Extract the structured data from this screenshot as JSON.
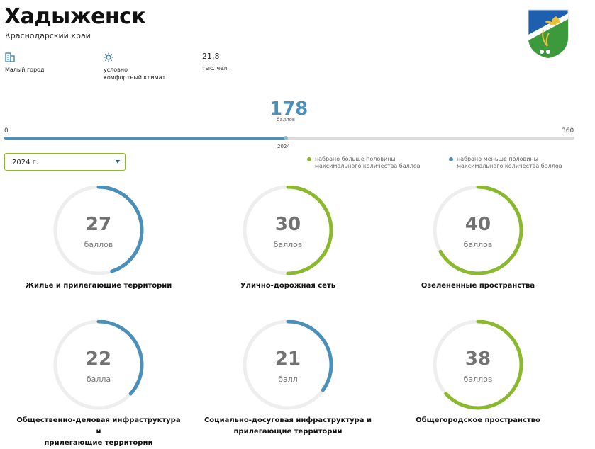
{
  "city": {
    "name": "Хадыженск",
    "region": "Краснодарский край"
  },
  "stats": [
    {
      "icon": "building-icon",
      "line1": "Малый город",
      "line2": ""
    },
    {
      "icon": "sun-icon",
      "line1": "условно",
      "line2": "комфортный климат"
    },
    {
      "value": "21,8",
      "line1": "тыс. чел.",
      "line2": ""
    }
  ],
  "score": {
    "value": "178",
    "unit": "баллов",
    "min": "0",
    "max": "360",
    "year": "2024",
    "fraction": 0.494
  },
  "year_select": {
    "value": "2024 г."
  },
  "legend": [
    {
      "color": "#8ab92d",
      "line1": "набрано больше половины",
      "line2": "максимального количества баллов"
    },
    {
      "color": "#4a90b8",
      "line1": "набрано меньше половины",
      "line2": "максимального количества баллов"
    }
  ],
  "colors": {
    "accent_blue": "#4a90b8",
    "accent_green": "#8ab92d"
  },
  "categories": [
    {
      "score": "27",
      "unit": "баллов",
      "label1": "Жилье и прилегающие территории",
      "label2": "",
      "fraction": 0.45,
      "color": "#4a90b8"
    },
    {
      "score": "30",
      "unit": "баллов",
      "label1": "Улично-дорожная сеть",
      "label2": "",
      "fraction": 0.5,
      "color": "#8ab92d"
    },
    {
      "score": "40",
      "unit": "баллов",
      "label1": "Озелененные пространства",
      "label2": "",
      "fraction": 0.667,
      "color": "#8ab92d"
    },
    {
      "score": "22",
      "unit": "балла",
      "label1": "Общественно-деловая инфраструктура и",
      "label2": "прилегающие территории",
      "fraction": 0.367,
      "color": "#4a90b8"
    },
    {
      "score": "21",
      "unit": "балл",
      "label1": "Социально-досуговая инфраструктура и",
      "label2": "прилегающие территории",
      "fraction": 0.35,
      "color": "#4a90b8"
    },
    {
      "score": "38",
      "unit": "баллов",
      "label1": "Общегородское пространство",
      "label2": "",
      "fraction": 0.633,
      "color": "#8ab92d"
    }
  ]
}
